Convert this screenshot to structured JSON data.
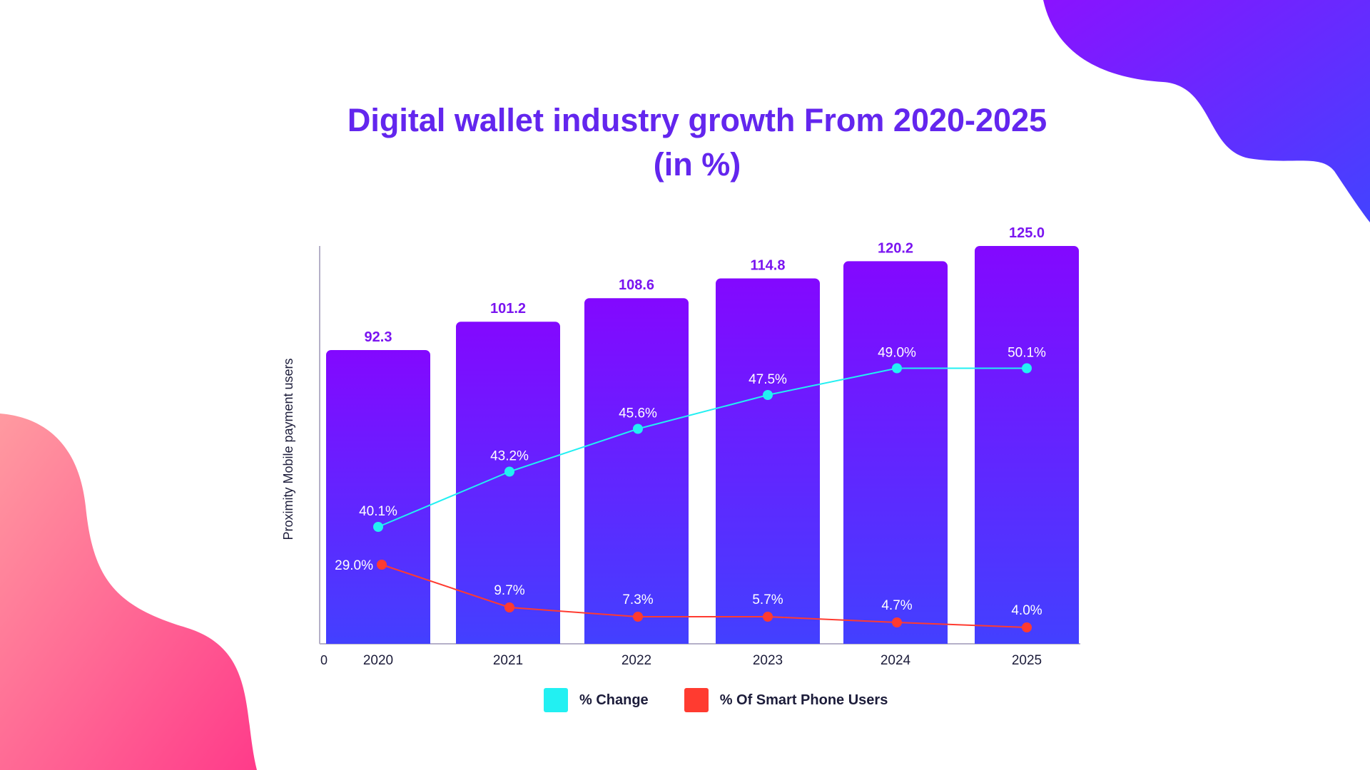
{
  "title_line1": "Digital wallet industry growth From 2020-2025",
  "title_line2": "(in %)",
  "colors": {
    "title": "#6326ee",
    "bar_top": "#8308ff",
    "bar_bottom": "#4340ff",
    "bar_label": "#7a14f0",
    "change_line": "#22f0f2",
    "smartphone_line": "#ff3b30",
    "axis": "#b5b0c8"
  },
  "chart_data": {
    "type": "bar",
    "categories": [
      "2020",
      "2021",
      "2022",
      "2023",
      "2024",
      "2025"
    ],
    "ylabel": "Proximity Mobile payment users",
    "y_origin_label": "0",
    "grid": false,
    "legend_position": "bottom",
    "series": [
      {
        "name": "Proximity Mobile payment users",
        "kind": "bar",
        "values": [
          92.3,
          101.2,
          108.6,
          114.8,
          120.2,
          125.0
        ],
        "labels": [
          "92.3",
          "101.2",
          "108.6",
          "114.8",
          "120.2",
          "125.0"
        ]
      },
      {
        "name": "% Change",
        "kind": "line",
        "values": [
          40.1,
          43.2,
          45.6,
          47.5,
          49.0,
          50.1
        ],
        "labels": [
          "40.1%",
          "43.2%",
          "45.6%",
          "47.5%",
          "49.0%",
          "50.1%"
        ]
      },
      {
        "name": "% Of Smart Phone Users",
        "kind": "line",
        "values": [
          29.0,
          9.7,
          7.3,
          5.7,
          4.7,
          4.0
        ],
        "labels": [
          "29.0%",
          "9.7%",
          "7.3%",
          "5.7%",
          "4.7%",
          "4.0%"
        ]
      }
    ]
  },
  "legend": [
    {
      "label": "% Change",
      "color": "#22f0f2"
    },
    {
      "label": "% Of Smart Phone Users",
      "color": "#ff3b30"
    }
  ]
}
